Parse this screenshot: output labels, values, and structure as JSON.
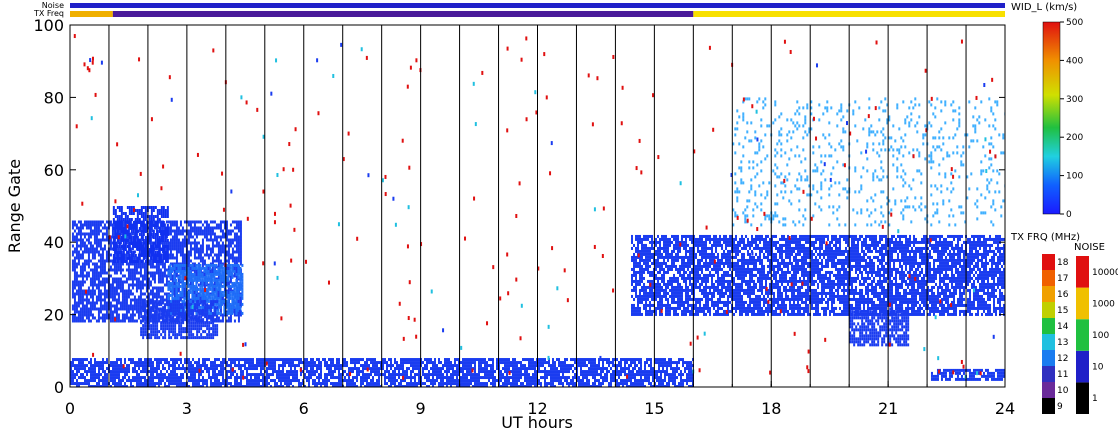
{
  "chart_data": {
    "type": "heatmap",
    "xlabel": "UT hours",
    "ylabel": "Range Gate",
    "xlim": [
      0,
      24
    ],
    "ylim": [
      0,
      100
    ],
    "x_ticks": [
      "0",
      "3",
      "6",
      "9",
      "12",
      "15",
      "18",
      "21",
      "24"
    ],
    "x_tick_values": [
      0,
      3,
      6,
      9,
      12,
      15,
      18,
      21,
      24
    ],
    "y_ticks": [
      "0",
      "20",
      "40",
      "60",
      "80",
      "100"
    ],
    "y_tick_values": [
      0,
      20,
      40,
      60,
      80,
      100
    ],
    "hour_lines": [
      1,
      2,
      3,
      4,
      5,
      6,
      7,
      8,
      9,
      10,
      11,
      12,
      13,
      14,
      15,
      16,
      17,
      18,
      19,
      20,
      21,
      22,
      23
    ],
    "strip_labels": {
      "noise": "Noise",
      "txfreq": "TX Freq"
    },
    "noise_strip_color": "#2020c8",
    "txfreq_strip": [
      {
        "x0": 0,
        "x1": 1.1,
        "color": "#f0b000"
      },
      {
        "x0": 1.1,
        "x1": 16.0,
        "color": "#4a1a9a"
      },
      {
        "x0": 16.0,
        "x1": 24,
        "color": "#f8e000"
      }
    ],
    "regions": [
      {
        "name": "morning-echo-band",
        "x0": 0.05,
        "x1": 4.4,
        "y0": 18,
        "y1": 46,
        "color": "#1a3cf0"
      },
      {
        "name": "upper-patch-a",
        "x0": 1.1,
        "x1": 2.5,
        "y0": 35,
        "y1": 50,
        "color": "#1030f0"
      },
      {
        "name": "mid-patch",
        "x0": 2.5,
        "x1": 4.4,
        "y0": 20,
        "y1": 34,
        "color": "#2070f8"
      },
      {
        "name": "low-patch",
        "x0": 1.8,
        "x1": 3.8,
        "y0": 14,
        "y1": 24,
        "color": "#1a3cf0"
      },
      {
        "name": "ground-scatter-band",
        "x0": 0,
        "x1": 16,
        "y0": 0,
        "y1": 8,
        "color": "#1a3cf0"
      },
      {
        "name": "afternoon-echo-band",
        "x0": 14.4,
        "x1": 24,
        "y0": 20,
        "y1": 42,
        "color": "#1a3cf0"
      },
      {
        "name": "late-upper-patch",
        "x0": 17,
        "x1": 24,
        "y0": 45,
        "y1": 80,
        "color": "#40b0ff"
      },
      {
        "name": "late-low-patch",
        "x0": 20,
        "x1": 21.5,
        "y0": 12,
        "y1": 22,
        "color": "#1a3cf0"
      },
      {
        "name": "ground-strip-late",
        "x0": 22.1,
        "x1": 24,
        "y0": 2,
        "y1": 5,
        "color": "#1a3cf0"
      }
    ],
    "scatter_color": "#e01010",
    "colorbar_width": {
      "title": "WID_L (km/s)",
      "ticks": [
        "0",
        "100",
        "200",
        "300",
        "400",
        "500"
      ]
    },
    "colorbar_txfreq": {
      "title": "TX FRQ (MHz)",
      "ticks": [
        "9",
        "10",
        "11",
        "12",
        "13",
        "14",
        "15",
        "16",
        "17",
        "18"
      ],
      "colors": [
        "#000000",
        "#6a2a9a",
        "#3030c0",
        "#1a7cf0",
        "#20c0e0",
        "#20c040",
        "#c0d000",
        "#f0a000",
        "#f06000",
        "#e01010"
      ]
    },
    "colorbar_noise": {
      "title": "NOISE",
      "ticks": [
        "1",
        "10",
        "100",
        "1000",
        "10000"
      ],
      "colors": [
        "#000000",
        "#2020c8",
        "#20c040",
        "#f0c000",
        "#e01010"
      ]
    }
  }
}
